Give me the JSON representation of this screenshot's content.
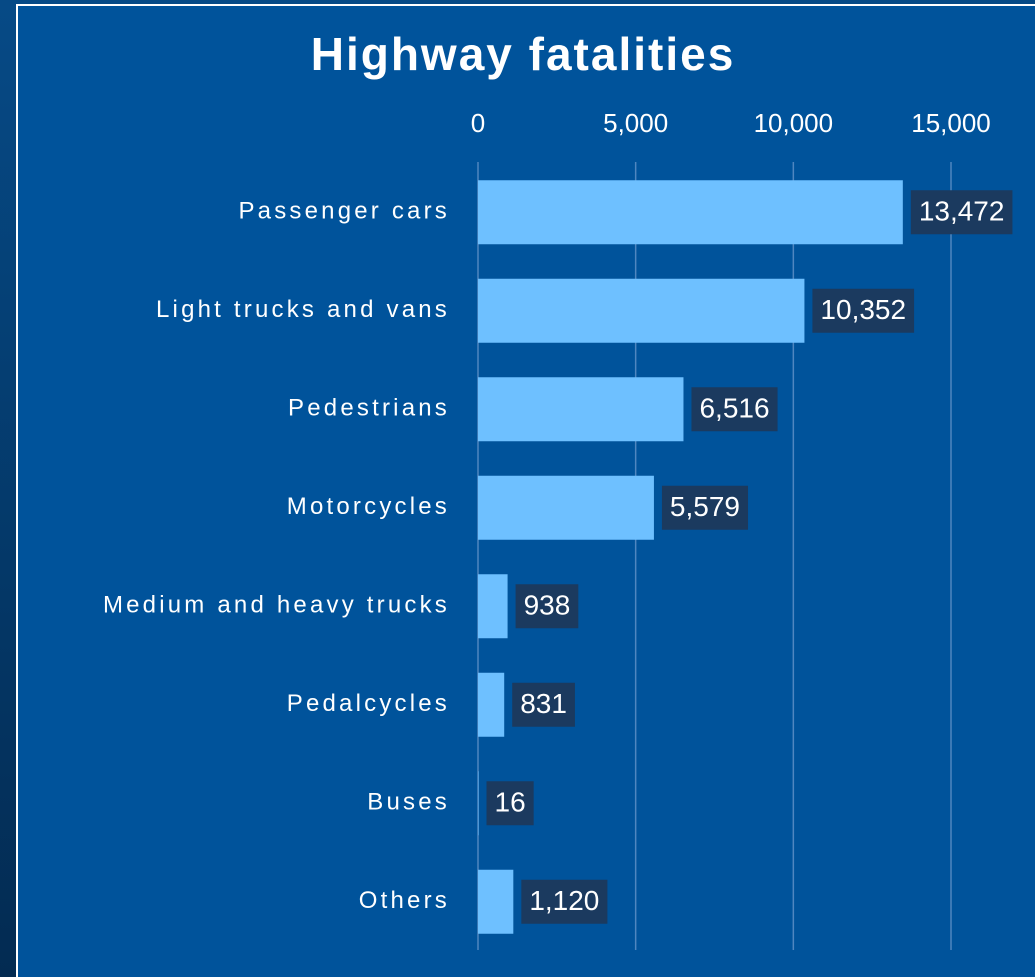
{
  "chart_data": {
    "type": "barh",
    "title": "Highway fatalities",
    "categories": [
      "Passenger cars",
      "Light trucks and vans",
      "Pedestrians",
      "Motorcycles",
      "Medium and heavy trucks",
      "Pedalcycles",
      "Buses",
      "Others"
    ],
    "values": [
      13472,
      10352,
      6516,
      5579,
      938,
      831,
      16,
      1120
    ],
    "value_labels": [
      "13,472",
      "10,352",
      "6,516",
      "5,579",
      "938",
      "831",
      "16",
      "1,120"
    ],
    "color": "#6ec0ff",
    "xlim": [
      0,
      15000
    ],
    "xticks": [
      0,
      {
        "value": 5000,
        "label": "5,000"
      },
      {
        "value": 10000,
        "label": "10,000"
      },
      {
        "value": 15000,
        "label": "15,000"
      }
    ],
    "grid": true
  }
}
